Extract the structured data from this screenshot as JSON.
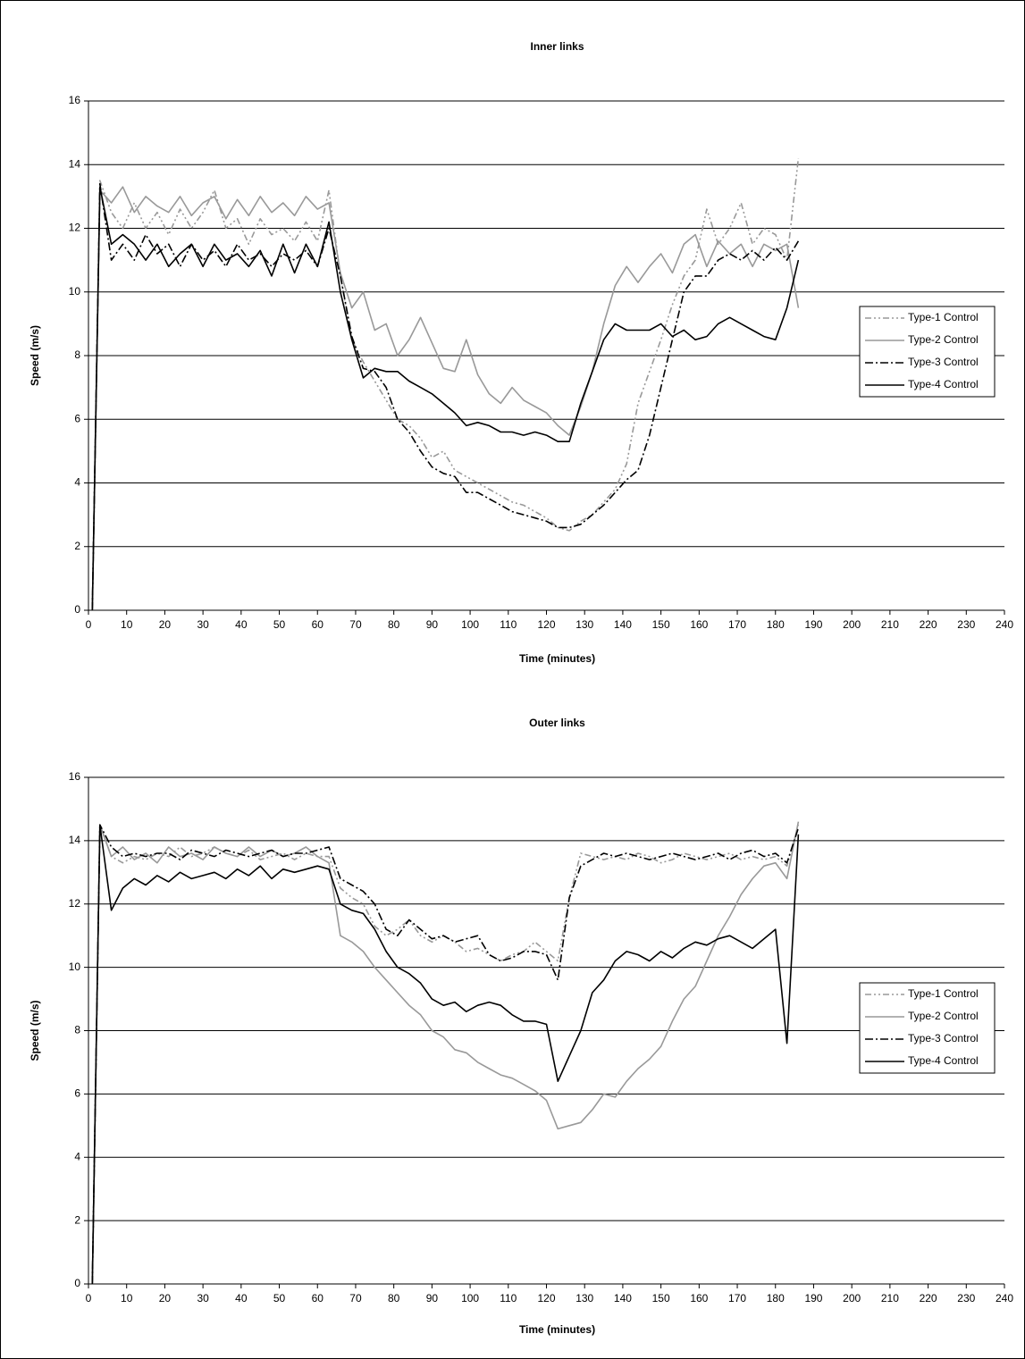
{
  "chart_data": [
    {
      "type": "line",
      "title": "Inner links",
      "x_label": "Time (minutes)",
      "y_label": "Speed (m/s)",
      "x": [
        1,
        3,
        6,
        9,
        12,
        15,
        18,
        21,
        24,
        27,
        30,
        33,
        36,
        39,
        42,
        45,
        48,
        51,
        54,
        57,
        60,
        63,
        66,
        69,
        72,
        75,
        78,
        81,
        84,
        87,
        90,
        93,
        96,
        99,
        102,
        105,
        108,
        111,
        114,
        117,
        120,
        123,
        126,
        129,
        132,
        135,
        138,
        141,
        144,
        147,
        150,
        153,
        156,
        159,
        162,
        165,
        168,
        171,
        174,
        177,
        180,
        183,
        186
      ],
      "series": [
        {
          "name": "Type-1 Control",
          "color": "#999999",
          "line_style": "dash-dot-dot",
          "values": [
            0,
            13.5,
            12.5,
            12,
            12.8,
            12,
            12.5,
            11.8,
            12.6,
            12,
            12.5,
            13.2,
            12,
            12.3,
            11.5,
            12.3,
            11.8,
            12,
            11.6,
            12.2,
            11.6,
            13.2,
            10.5,
            8.5,
            7.8,
            7.2,
            6.6,
            6,
            5.8,
            5.4,
            4.8,
            5,
            4.4,
            4.2,
            4,
            3.8,
            3.6,
            3.4,
            3.3,
            3.1,
            2.9,
            2.6,
            2.5,
            2.8,
            3,
            3.4,
            3.8,
            4.6,
            6.5,
            7.5,
            8.5,
            9.6,
            10.5,
            11,
            12.6,
            11.5,
            12,
            12.8,
            11.5,
            12,
            11.8,
            11,
            14.2
          ]
        },
        {
          "name": "Type-2 Control",
          "color": "#999999",
          "line_style": "solid",
          "values": [
            0,
            13.2,
            12.8,
            13.3,
            12.5,
            13,
            12.7,
            12.5,
            13,
            12.4,
            12.8,
            13,
            12.3,
            12.9,
            12.4,
            13,
            12.5,
            12.8,
            12.4,
            13,
            12.6,
            12.8,
            10.6,
            9.5,
            10,
            8.8,
            9,
            8,
            8.5,
            9.2,
            8.4,
            7.6,
            7.5,
            8.5,
            7.4,
            6.8,
            6.5,
            7,
            6.6,
            6.4,
            6.2,
            5.8,
            5.5,
            6.4,
            7.5,
            9,
            10.2,
            10.8,
            10.3,
            10.8,
            11.2,
            10.6,
            11.5,
            11.8,
            10.8,
            11.6,
            11.2,
            11.5,
            10.8,
            11.5,
            11.3,
            11.5,
            9.5
          ]
        },
        {
          "name": "Type-3 Control",
          "color": "#000000",
          "line_style": "dash-dot",
          "values": [
            0,
            13.4,
            11,
            11.5,
            11,
            11.8,
            11.2,
            11.5,
            10.8,
            11.5,
            11,
            11.3,
            10.8,
            11.5,
            11,
            11.2,
            10.8,
            11.2,
            11,
            11.3,
            10.8,
            12,
            10.5,
            8.6,
            7.6,
            7.5,
            7,
            6,
            5.6,
            5,
            4.5,
            4.3,
            4.2,
            3.7,
            3.7,
            3.5,
            3.3,
            3.1,
            3,
            2.9,
            2.8,
            2.6,
            2.6,
            2.7,
            3,
            3.3,
            3.7,
            4.1,
            4.4,
            5.5,
            7,
            8.5,
            10,
            10.5,
            10.5,
            11,
            11.2,
            11,
            11.3,
            11,
            11.4,
            11,
            11.6
          ]
        },
        {
          "name": "Type-4 Control",
          "color": "#000000",
          "line_style": "solid",
          "values": [
            0,
            13.3,
            11.5,
            11.8,
            11.5,
            11,
            11.5,
            10.8,
            11.2,
            11.5,
            10.8,
            11.5,
            11,
            11.2,
            10.8,
            11.3,
            10.5,
            11.5,
            10.6,
            11.5,
            10.8,
            12.2,
            10,
            8.5,
            7.3,
            7.6,
            7.5,
            7.5,
            7.2,
            7,
            6.8,
            6.5,
            6.2,
            5.8,
            5.9,
            5.8,
            5.6,
            5.6,
            5.5,
            5.6,
            5.5,
            5.3,
            5.3,
            6.5,
            7.5,
            8.5,
            9,
            8.8,
            8.8,
            8.8,
            9,
            8.6,
            8.8,
            8.5,
            8.6,
            9,
            9.2,
            9,
            8.8,
            8.6,
            8.5,
            9.5,
            11
          ]
        }
      ],
      "xlim": [
        0,
        240
      ],
      "xticks": [
        0,
        10,
        20,
        30,
        40,
        50,
        60,
        70,
        80,
        90,
        100,
        110,
        120,
        130,
        140,
        150,
        160,
        170,
        180,
        190,
        200,
        210,
        220,
        230,
        240
      ],
      "ylim": [
        0,
        16
      ],
      "yticks": [
        0,
        2,
        4,
        6,
        8,
        10,
        12,
        14,
        16
      ],
      "grid": true,
      "legend": "right"
    },
    {
      "type": "line",
      "title": "Outer links",
      "x_label": "Time (minutes)",
      "y_label": "Speed (m/s)",
      "x": [
        1,
        3,
        6,
        9,
        12,
        15,
        18,
        21,
        24,
        27,
        30,
        33,
        36,
        39,
        42,
        45,
        48,
        51,
        54,
        57,
        60,
        63,
        66,
        69,
        72,
        75,
        78,
        81,
        84,
        87,
        90,
        93,
        96,
        99,
        102,
        105,
        108,
        111,
        114,
        117,
        120,
        123,
        126,
        129,
        132,
        135,
        138,
        141,
        144,
        147,
        150,
        153,
        156,
        159,
        162,
        165,
        168,
        171,
        174,
        177,
        180,
        183,
        186
      ],
      "series": [
        {
          "name": "Type-1 Control",
          "color": "#999999",
          "line_style": "dash-dot-dot",
          "values": [
            0,
            14.5,
            13.5,
            13.3,
            13.5,
            13.4,
            13.6,
            13.5,
            13.8,
            13.5,
            13.6,
            13.8,
            13.6,
            13.5,
            13.7,
            13.4,
            13.5,
            13.6,
            13.4,
            13.6,
            13.5,
            13.5,
            12.5,
            12.2,
            12,
            11.3,
            11,
            11.2,
            11.5,
            11,
            10.8,
            11,
            10.8,
            10.5,
            10.6,
            10.4,
            10.2,
            10.4,
            10.5,
            10.8,
            10.5,
            10.2,
            12.2,
            13.6,
            13.5,
            13.4,
            13.5,
            13.4,
            13.6,
            13.5,
            13.3,
            13.4,
            13.6,
            13.5,
            13.4,
            13.5,
            13.6,
            13.4,
            13.5,
            13.4,
            13.5,
            13.2,
            14.5
          ]
        },
        {
          "name": "Type-2 Control",
          "color": "#999999",
          "line_style": "solid",
          "values": [
            0,
            14.5,
            13.5,
            13.8,
            13.4,
            13.6,
            13.3,
            13.8,
            13.5,
            13.6,
            13.4,
            13.8,
            13.6,
            13.5,
            13.8,
            13.5,
            13.7,
            13.5,
            13.6,
            13.8,
            13.5,
            13.3,
            11,
            10.8,
            10.5,
            10,
            9.6,
            9.2,
            8.8,
            8.5,
            8,
            7.8,
            7.4,
            7.3,
            7,
            6.8,
            6.6,
            6.5,
            6.3,
            6.1,
            5.8,
            4.9,
            5,
            5.1,
            5.5,
            6,
            5.9,
            6.4,
            6.8,
            7.1,
            7.5,
            8.3,
            9,
            9.4,
            10.2,
            11,
            11.6,
            12.3,
            12.8,
            13.2,
            13.3,
            12.8,
            14.6
          ]
        },
        {
          "name": "Type-3 Control",
          "color": "#000000",
          "line_style": "dash-dot",
          "values": [
            0,
            14.5,
            13.8,
            13.5,
            13.6,
            13.5,
            13.6,
            13.6,
            13.4,
            13.7,
            13.6,
            13.5,
            13.7,
            13.6,
            13.5,
            13.6,
            13.7,
            13.5,
            13.6,
            13.6,
            13.7,
            13.8,
            12.8,
            12.6,
            12.4,
            12,
            11.2,
            11,
            11.5,
            11.2,
            10.9,
            11,
            10.8,
            10.9,
            11,
            10.4,
            10.2,
            10.3,
            10.5,
            10.5,
            10.4,
            9.6,
            12.2,
            13.2,
            13.4,
            13.6,
            13.5,
            13.6,
            13.5,
            13.4,
            13.5,
            13.6,
            13.5,
            13.4,
            13.5,
            13.6,
            13.4,
            13.6,
            13.7,
            13.5,
            13.6,
            13.3,
            14.4
          ]
        },
        {
          "name": "Type-4 Control",
          "color": "#000000",
          "line_style": "solid",
          "values": [
            0,
            14.5,
            11.8,
            12.5,
            12.8,
            12.6,
            12.9,
            12.7,
            13,
            12.8,
            12.9,
            13,
            12.8,
            13.1,
            12.9,
            13.2,
            12.8,
            13.1,
            13,
            13.1,
            13.2,
            13.1,
            12,
            11.8,
            11.7,
            11.2,
            10.5,
            10,
            9.8,
            9.5,
            9,
            8.8,
            8.9,
            8.6,
            8.8,
            8.9,
            8.8,
            8.5,
            8.3,
            8.3,
            8.2,
            6.4,
            7.2,
            8,
            9.2,
            9.6,
            10.2,
            10.5,
            10.4,
            10.2,
            10.5,
            10.3,
            10.6,
            10.8,
            10.7,
            10.9,
            11,
            10.8,
            10.6,
            10.9,
            11.2,
            7.6,
            14.2
          ]
        }
      ],
      "xlim": [
        0,
        240
      ],
      "xticks": [
        0,
        10,
        20,
        30,
        40,
        50,
        60,
        70,
        80,
        90,
        100,
        110,
        120,
        130,
        140,
        150,
        160,
        170,
        180,
        190,
        200,
        210,
        220,
        230,
        240
      ],
      "ylim": [
        0,
        16
      ],
      "yticks": [
        0,
        2,
        4,
        6,
        8,
        10,
        12,
        14,
        16
      ],
      "grid": true,
      "legend": "right"
    }
  ]
}
